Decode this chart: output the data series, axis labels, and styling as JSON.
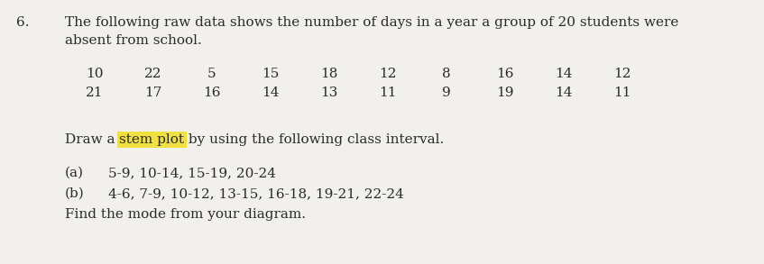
{
  "question_number": "6.",
  "line1": "The following raw data shows the number of days in a year a group of 20 students were",
  "line2": "absent from school.",
  "data_row1": [
    "10",
    "22",
    "5",
    "15",
    "18",
    "12",
    "8",
    "16",
    "14",
    "12"
  ],
  "data_row2": [
    "21",
    "17",
    "16",
    "14",
    "13",
    "11",
    "9",
    "19",
    "14",
    "11"
  ],
  "draw_prefix": "Draw a ",
  "draw_highlight": "stem plot",
  "draw_suffix": " by using the following class interval.",
  "part_a_label": "(a)",
  "part_a_text": "5-9, 10-14, 15-19, 20-24",
  "part_b_label": "(b)",
  "part_b_text": "4-6, 7-9, 10-12, 13-15, 16-18, 19-21, 22-24",
  "part_c": "Find the mode from your diagram.",
  "bg_color": "#f2f0ec",
  "text_color": "#2a2a2a",
  "highlight_color": "#f0e040",
  "font_size_main": 11.0,
  "font_size_data": 11.0,
  "font_size_parts": 11.0
}
